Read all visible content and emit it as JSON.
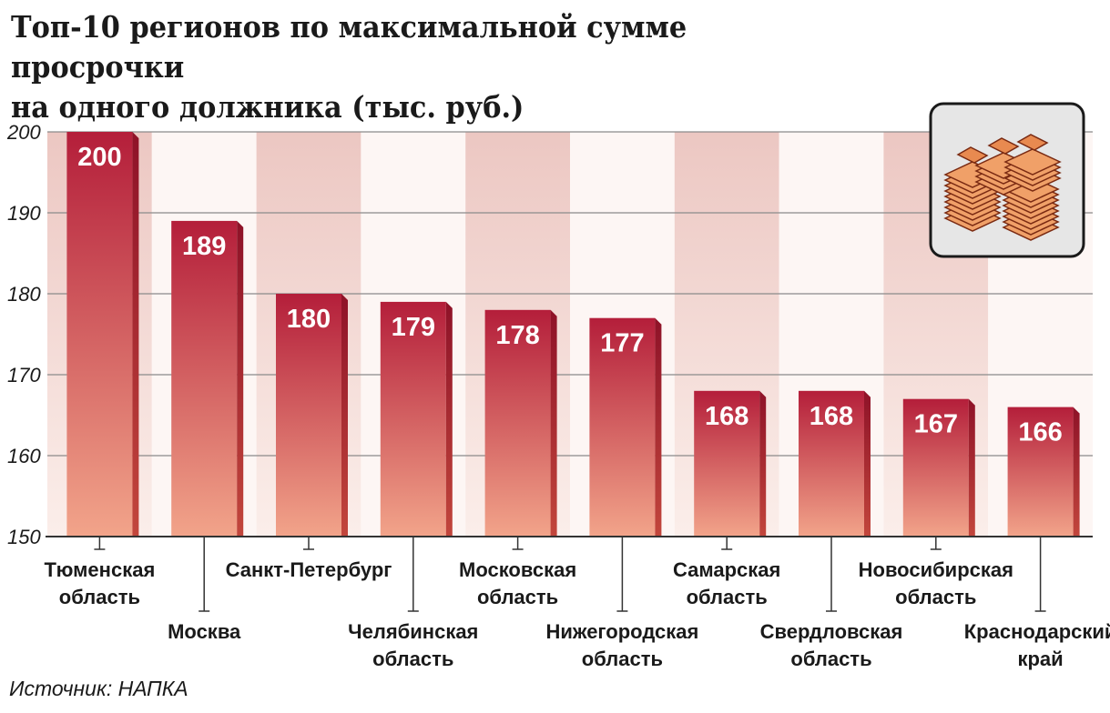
{
  "title_line1": "Топ-10 регионов по максимальной сумме просрочки",
  "title_line2": "на одного должника (тыс. руб.)",
  "source": "Источник: НАПКА",
  "icon": "money-stacks-icon",
  "colors": {
    "bar_top": "#b41e3a",
    "bar_bottom": "#f2a48a",
    "bar_side": "#8e1228",
    "band": "#ecc7c2",
    "grid": "#8a8a8a",
    "axis": "#333333"
  },
  "chart_data": {
    "type": "bar",
    "title": "Топ-10 регионов по максимальной сумме просрочки на одного должника (тыс. руб.)",
    "categories": [
      [
        "Тюменская",
        "область"
      ],
      [
        "Москва"
      ],
      [
        "Санкт-Петербург"
      ],
      [
        "Челябинская",
        "область"
      ],
      [
        "Московская",
        "область"
      ],
      [
        "Нижегородская",
        "область"
      ],
      [
        "Самарская",
        "область"
      ],
      [
        "Свердловская",
        "область"
      ],
      [
        "Новосибирская",
        "область"
      ],
      [
        "Краснодарский",
        "край"
      ]
    ],
    "values": [
      200,
      189,
      180,
      179,
      178,
      177,
      168,
      168,
      167,
      166
    ],
    "ylim": [
      150,
      200
    ],
    "yticks": [
      150,
      160,
      170,
      180,
      190,
      200
    ],
    "grid": true,
    "data_labels": true
  }
}
